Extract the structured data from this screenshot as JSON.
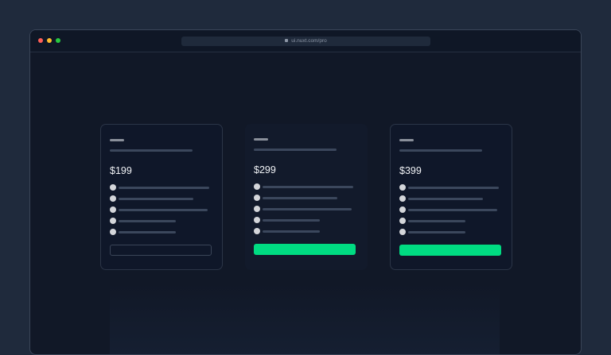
{
  "browser": {
    "url": "ui.nuxt.com/pro",
    "dots": [
      "#ff5f57",
      "#febc2e",
      "#28c840"
    ],
    "lock_icon": "lock-icon"
  },
  "accent": "#00dc82",
  "plans": [
    {
      "price": "$199",
      "button_style": "outline",
      "bordered": true
    },
    {
      "price": "$299",
      "button_style": "solid",
      "bordered": false
    },
    {
      "price": "$399",
      "button_style": "solid",
      "bordered": true
    }
  ]
}
